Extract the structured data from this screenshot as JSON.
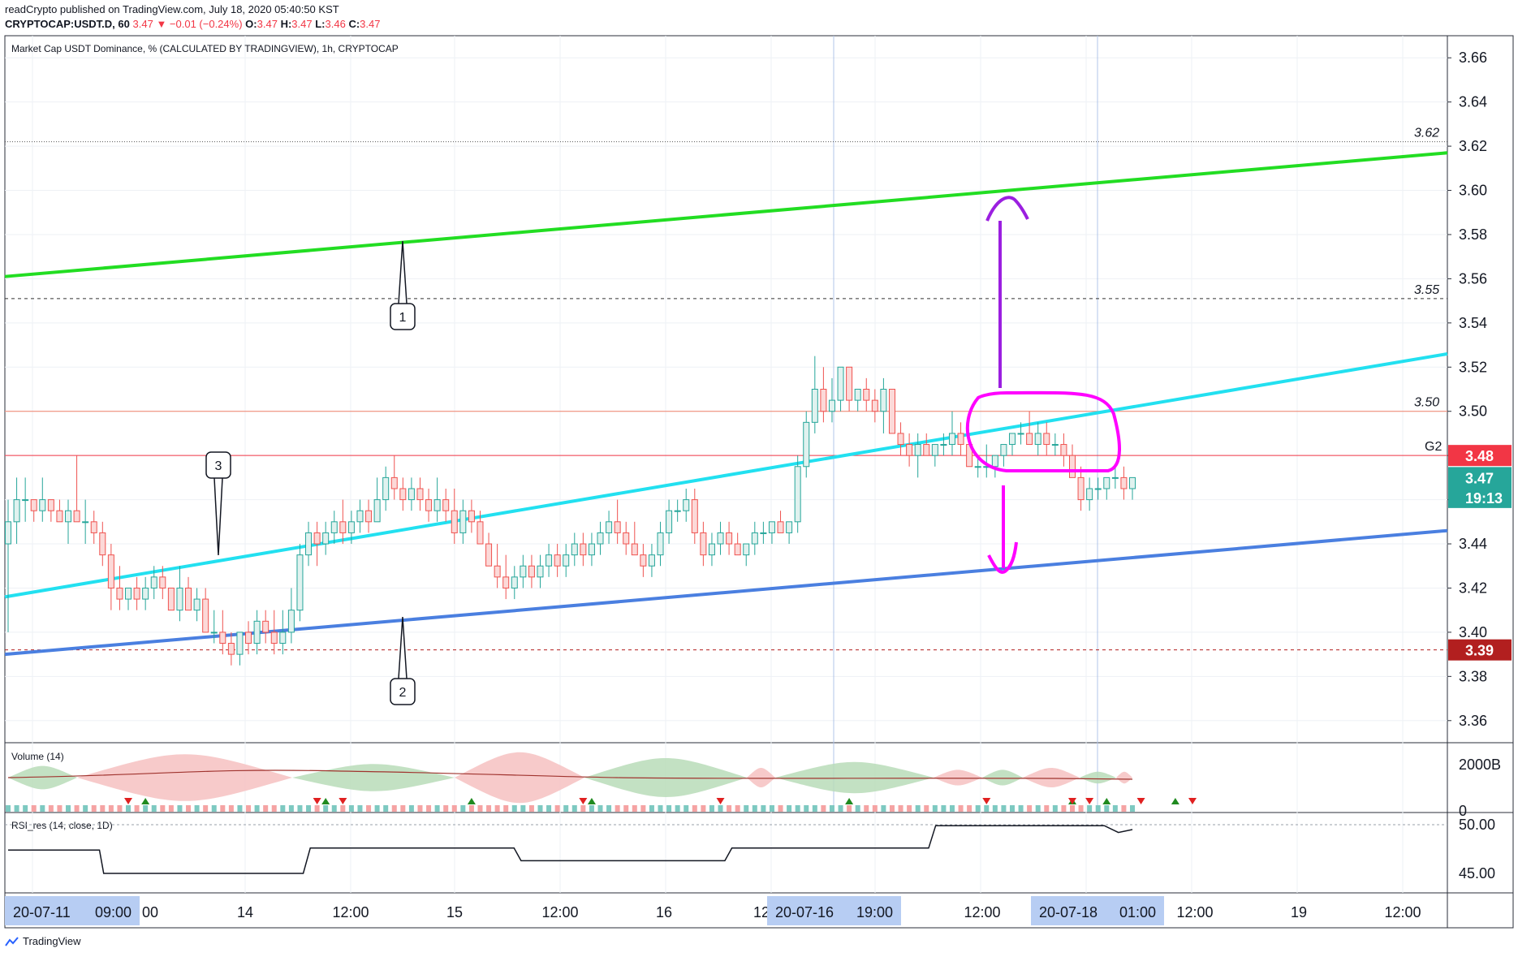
{
  "header": {
    "line1": "readCrypto published on TradingView.com, July 18, 2020 05:40:50 KST",
    "symbol": "CRYPTOCAP:USDT.D, 60",
    "last": "3.47",
    "change": "▼ −0.01 (−0.24%)",
    "o_label": "O:",
    "o": "3.47",
    "h_label": "H:",
    "h": "3.47",
    "l_label": "L:",
    "l": "3.46",
    "c_label": "C:",
    "c": "3.47"
  },
  "footer": {
    "brand": "TradingView"
  },
  "chart_data": {
    "type": "candlestick",
    "title": "Market Cap USDT Dominance, % (CALCULATED BY TRADINGVIEW), 1h, CRYPTOCAP",
    "y_ticks": [
      "3.66",
      "3.64",
      "3.62",
      "3.60",
      "3.58",
      "3.56",
      "3.54",
      "3.52",
      "3.50",
      "3.48",
      "3.46",
      "3.44",
      "3.42",
      "3.40",
      "3.38",
      "3.36"
    ],
    "ylim": [
      3.35,
      3.67
    ],
    "x_labels": [
      "00",
      "14",
      "12:00",
      "15",
      "12:00",
      "16",
      "12",
      "12:00",
      "12:00",
      "19",
      "12:00"
    ],
    "time_badges": [
      {
        "date": "20-07-11",
        "time": "09:00"
      },
      {
        "date": "20-07-16",
        "time": "19:00"
      },
      {
        "date": "20-07-18",
        "time": "01:00"
      }
    ],
    "price_badges": [
      {
        "label": "3.48",
        "value": 3.48,
        "color": "#f23645"
      },
      {
        "label": "3.47",
        "value": 3.47,
        "color": "#26a69a"
      },
      {
        "label": "19:13",
        "value": 3.461,
        "color": "#26a69a"
      },
      {
        "label": "3.39",
        "value": 3.392,
        "color": "#b21f1f"
      }
    ],
    "levels": [
      {
        "value": 3.622,
        "label": "3.62",
        "style": "dotted",
        "color": "#555555"
      },
      {
        "value": 3.551,
        "label": "3.55",
        "style": "dashed",
        "color": "#333333"
      },
      {
        "value": 3.5,
        "label": "3.50",
        "style": "solid",
        "color": "#f0806a"
      },
      {
        "value": 3.48,
        "label": "G2",
        "style": "solid",
        "color": "#f23645"
      },
      {
        "value": 3.392,
        "label": "",
        "style": "dashed",
        "color": "#b21f1f"
      }
    ],
    "trendlines": [
      {
        "name": "green",
        "color": "#22dd22",
        "from": [
          0,
          3.561
        ],
        "to": [
          1,
          3.617
        ]
      },
      {
        "name": "cyan",
        "color": "#22e0f0",
        "from": [
          0,
          3.416
        ],
        "to": [
          1,
          3.526
        ]
      },
      {
        "name": "blue",
        "color": "#4a7fe0",
        "from": [
          0,
          3.39
        ],
        "to": [
          1,
          3.446
        ]
      }
    ],
    "callouts": [
      "1",
      "2",
      "3"
    ],
    "candles": [
      [
        3.44,
        3.46,
        3.4,
        3.45
      ],
      [
        3.45,
        3.47,
        3.44,
        3.46
      ],
      [
        3.46,
        3.47,
        3.45,
        3.46
      ],
      [
        3.46,
        3.46,
        3.45,
        3.455
      ],
      [
        3.455,
        3.47,
        3.45,
        3.46
      ],
      [
        3.46,
        3.46,
        3.45,
        3.455
      ],
      [
        3.455,
        3.46,
        3.45,
        3.45
      ],
      [
        3.45,
        3.46,
        3.44,
        3.455
      ],
      [
        3.455,
        3.48,
        3.45,
        3.45
      ],
      [
        3.45,
        3.46,
        3.44,
        3.45
      ],
      [
        3.45,
        3.455,
        3.44,
        3.445
      ],
      [
        3.445,
        3.45,
        3.43,
        3.435
      ],
      [
        3.435,
        3.44,
        3.41,
        3.42
      ],
      [
        3.42,
        3.43,
        3.41,
        3.415
      ],
      [
        3.415,
        3.42,
        3.41,
        3.42
      ],
      [
        3.42,
        3.425,
        3.41,
        3.415
      ],
      [
        3.415,
        3.425,
        3.41,
        3.42
      ],
      [
        3.42,
        3.43,
        3.415,
        3.425
      ],
      [
        3.425,
        3.43,
        3.415,
        3.42
      ],
      [
        3.42,
        3.42,
        3.41,
        3.41
      ],
      [
        3.41,
        3.43,
        3.405,
        3.42
      ],
      [
        3.42,
        3.425,
        3.41,
        3.41
      ],
      [
        3.41,
        3.42,
        3.405,
        3.415
      ],
      [
        3.415,
        3.42,
        3.4,
        3.4
      ],
      [
        3.4,
        3.41,
        3.395,
        3.4
      ],
      [
        3.4,
        3.41,
        3.39,
        3.395
      ],
      [
        3.395,
        3.4,
        3.385,
        3.39
      ],
      [
        3.39,
        3.4,
        3.385,
        3.4
      ],
      [
        3.4,
        3.405,
        3.39,
        3.395
      ],
      [
        3.395,
        3.41,
        3.39,
        3.405
      ],
      [
        3.405,
        3.41,
        3.395,
        3.4
      ],
      [
        3.4,
        3.41,
        3.39,
        3.395
      ],
      [
        3.395,
        3.41,
        3.39,
        3.4
      ],
      [
        3.4,
        3.42,
        3.395,
        3.41
      ],
      [
        3.41,
        3.44,
        3.405,
        3.435
      ],
      [
        3.435,
        3.45,
        3.43,
        3.445
      ],
      [
        3.445,
        3.45,
        3.43,
        3.44
      ],
      [
        3.44,
        3.45,
        3.435,
        3.445
      ],
      [
        3.445,
        3.455,
        3.44,
        3.45
      ],
      [
        3.45,
        3.46,
        3.44,
        3.445
      ],
      [
        3.445,
        3.455,
        3.44,
        3.45
      ],
      [
        3.45,
        3.46,
        3.445,
        3.455
      ],
      [
        3.455,
        3.46,
        3.445,
        3.45
      ],
      [
        3.45,
        3.47,
        3.45,
        3.46
      ],
      [
        3.46,
        3.475,
        3.455,
        3.47
      ],
      [
        3.47,
        3.48,
        3.46,
        3.465
      ],
      [
        3.465,
        3.47,
        3.455,
        3.46
      ],
      [
        3.46,
        3.47,
        3.455,
        3.465
      ],
      [
        3.465,
        3.47,
        3.455,
        3.46
      ],
      [
        3.46,
        3.465,
        3.45,
        3.455
      ],
      [
        3.455,
        3.47,
        3.45,
        3.46
      ],
      [
        3.46,
        3.465,
        3.45,
        3.455
      ],
      [
        3.455,
        3.465,
        3.44,
        3.445
      ],
      [
        3.445,
        3.46,
        3.44,
        3.455
      ],
      [
        3.455,
        3.46,
        3.445,
        3.45
      ],
      [
        3.45,
        3.455,
        3.44,
        3.44
      ],
      [
        3.44,
        3.445,
        3.43,
        3.43
      ],
      [
        3.43,
        3.44,
        3.42,
        3.425
      ],
      [
        3.425,
        3.435,
        3.415,
        3.42
      ],
      [
        3.42,
        3.43,
        3.415,
        3.425
      ],
      [
        3.425,
        3.435,
        3.42,
        3.43
      ],
      [
        3.43,
        3.435,
        3.42,
        3.425
      ],
      [
        3.425,
        3.435,
        3.42,
        3.43
      ],
      [
        3.43,
        3.44,
        3.425,
        3.435
      ],
      [
        3.435,
        3.44,
        3.425,
        3.43
      ],
      [
        3.43,
        3.44,
        3.425,
        3.435
      ],
      [
        3.435,
        3.445,
        3.43,
        3.44
      ],
      [
        3.44,
        3.445,
        3.43,
        3.435
      ],
      [
        3.435,
        3.445,
        3.43,
        3.44
      ],
      [
        3.44,
        3.45,
        3.435,
        3.445
      ],
      [
        3.445,
        3.455,
        3.44,
        3.45
      ],
      [
        3.45,
        3.46,
        3.44,
        3.445
      ],
      [
        3.445,
        3.45,
        3.435,
        3.44
      ],
      [
        3.44,
        3.45,
        3.435,
        3.435
      ],
      [
        3.435,
        3.44,
        3.425,
        3.43
      ],
      [
        3.43,
        3.44,
        3.425,
        3.435
      ],
      [
        3.435,
        3.45,
        3.43,
        3.445
      ],
      [
        3.445,
        3.46,
        3.44,
        3.455
      ],
      [
        3.455,
        3.46,
        3.45,
        3.455
      ],
      [
        3.455,
        3.465,
        3.45,
        3.46
      ],
      [
        3.46,
        3.465,
        3.44,
        3.445
      ],
      [
        3.445,
        3.45,
        3.43,
        3.435
      ],
      [
        3.435,
        3.445,
        3.43,
        3.44
      ],
      [
        3.44,
        3.45,
        3.435,
        3.445
      ],
      [
        3.445,
        3.45,
        3.435,
        3.44
      ],
      [
        3.44,
        3.445,
        3.435,
        3.435
      ],
      [
        3.435,
        3.44,
        3.43,
        3.44
      ],
      [
        3.44,
        3.45,
        3.435,
        3.445
      ],
      [
        3.445,
        3.45,
        3.44,
        3.445
      ],
      [
        3.445,
        3.45,
        3.44,
        3.45
      ],
      [
        3.45,
        3.455,
        3.445,
        3.445
      ],
      [
        3.445,
        3.45,
        3.44,
        3.45
      ],
      [
        3.45,
        3.48,
        3.445,
        3.475
      ],
      [
        3.475,
        3.5,
        3.47,
        3.495
      ],
      [
        3.495,
        3.525,
        3.49,
        3.51
      ],
      [
        3.51,
        3.52,
        3.495,
        3.5
      ],
      [
        3.5,
        3.515,
        3.495,
        3.505
      ],
      [
        3.505,
        3.52,
        3.5,
        3.52
      ],
      [
        3.52,
        3.52,
        3.5,
        3.505
      ],
      [
        3.505,
        3.51,
        3.5,
        3.51
      ],
      [
        3.51,
        3.515,
        3.5,
        3.505
      ],
      [
        3.505,
        3.51,
        3.495,
        3.5
      ],
      [
        3.5,
        3.515,
        3.49,
        3.51
      ],
      [
        3.51,
        3.51,
        3.49,
        3.49
      ],
      [
        3.49,
        3.495,
        3.48,
        3.485
      ],
      [
        3.485,
        3.49,
        3.475,
        3.48
      ],
      [
        3.48,
        3.49,
        3.47,
        3.485
      ],
      [
        3.485,
        3.49,
        3.48,
        3.48
      ],
      [
        3.48,
        3.485,
        3.475,
        3.485
      ],
      [
        3.485,
        3.49,
        3.48,
        3.485
      ],
      [
        3.485,
        3.5,
        3.48,
        3.49
      ],
      [
        3.49,
        3.495,
        3.48,
        3.485
      ],
      [
        3.485,
        3.49,
        3.475,
        3.475
      ],
      [
        3.475,
        3.48,
        3.47,
        3.475
      ],
      [
        3.475,
        3.485,
        3.47,
        3.475
      ],
      [
        3.475,
        3.48,
        3.47,
        3.48
      ],
      [
        3.48,
        3.485,
        3.475,
        3.485
      ],
      [
        3.485,
        3.49,
        3.48,
        3.49
      ],
      [
        3.49,
        3.495,
        3.485,
        3.49
      ],
      [
        3.49,
        3.5,
        3.485,
        3.485
      ],
      [
        3.485,
        3.495,
        3.48,
        3.49
      ],
      [
        3.49,
        3.495,
        3.48,
        3.485
      ],
      [
        3.485,
        3.49,
        3.48,
        3.485
      ],
      [
        3.485,
        3.49,
        3.475,
        3.48
      ],
      [
        3.48,
        3.485,
        3.47,
        3.47
      ],
      [
        3.47,
        3.475,
        3.455,
        3.46
      ],
      [
        3.46,
        3.47,
        3.455,
        3.465
      ],
      [
        3.465,
        3.47,
        3.46,
        3.465
      ],
      [
        3.465,
        3.47,
        3.46,
        3.47
      ],
      [
        3.47,
        3.475,
        3.465,
        3.47
      ],
      [
        3.47,
        3.475,
        3.46,
        3.465
      ],
      [
        3.465,
        3.47,
        3.46,
        3.47
      ]
    ],
    "volume_panel": {
      "label": "Volume (14)",
      "y_ticks": [
        "2000B",
        "0"
      ]
    },
    "rsi_panel": {
      "label": "RSI_res (14, close, 1D)",
      "y_ticks": [
        "50.00",
        "45.00"
      ],
      "steps": [
        [
          0,
          47.4
        ],
        [
          0.065,
          47.4
        ],
        [
          0.068,
          45.0
        ],
        [
          0.21,
          45.0
        ],
        [
          0.215,
          47.6
        ],
        [
          0.36,
          47.6
        ],
        [
          0.365,
          46.3
        ],
        [
          0.51,
          46.3
        ],
        [
          0.515,
          47.6
        ],
        [
          0.655,
          47.6
        ],
        [
          0.66,
          49.9
        ],
        [
          0.78,
          49.9
        ],
        [
          0.79,
          49.2
        ],
        [
          0.8,
          49.5
        ]
      ]
    },
    "annotations": {
      "up_arrow": "purple",
      "down_arrow": "magenta",
      "highlight_ellipse": "magenta"
    }
  }
}
